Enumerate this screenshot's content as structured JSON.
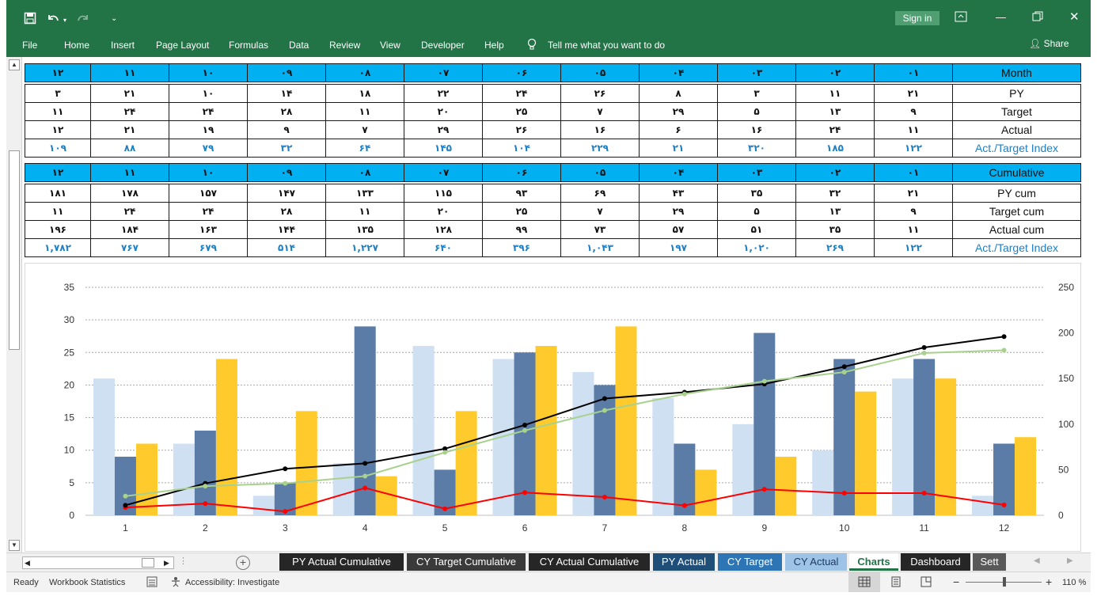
{
  "ribbon": {
    "signin": "Sign in",
    "menu": [
      "File",
      "Home",
      "Insert",
      "Page Layout",
      "Formulas",
      "Data",
      "Review",
      "View",
      "Developer",
      "Help"
    ],
    "tell_me": "Tell me what you want to do",
    "share": "Share"
  },
  "table1": {
    "header": {
      "label": "Month",
      "cells": [
        "۱۲",
        "۱۱",
        "۱۰",
        "۰۹",
        "۰۸",
        "۰۷",
        "۰۶",
        "۰۵",
        "۰۴",
        "۰۳",
        "۰۲",
        "۰۱"
      ]
    },
    "rows": [
      {
        "label": "PY",
        "cells": [
          "۳",
          "۲۱",
          "۱۰",
          "۱۴",
          "۱۸",
          "۲۲",
          "۲۴",
          "۲۶",
          "۸",
          "۳",
          "۱۱",
          "۲۱"
        ]
      },
      {
        "label": "Target",
        "cells": [
          "۱۱",
          "۲۴",
          "۲۴",
          "۲۸",
          "۱۱",
          "۲۰",
          "۲۵",
          "۷",
          "۲۹",
          "۵",
          "۱۳",
          "۹"
        ]
      },
      {
        "label": "Actual",
        "cells": [
          "۱۲",
          "۲۱",
          "۱۹",
          "۹",
          "۷",
          "۲۹",
          "۲۶",
          "۱۶",
          "۶",
          "۱۶",
          "۲۴",
          "۱۱"
        ]
      },
      {
        "label": "Act./Target Index",
        "cells": [
          "۱۰۹",
          "۸۸",
          "۷۹",
          "۳۲",
          "۶۴",
          "۱۴۵",
          "۱۰۴",
          "۲۲۹",
          "۲۱",
          "۳۲۰",
          "۱۸۵",
          "۱۲۲"
        ]
      }
    ]
  },
  "table2": {
    "header": {
      "label": "Cumulative",
      "cells": [
        "۱۲",
        "۱۱",
        "۱۰",
        "۰۹",
        "۰۸",
        "۰۷",
        "۰۶",
        "۰۵",
        "۰۴",
        "۰۳",
        "۰۲",
        "۰۱"
      ]
    },
    "rows": [
      {
        "label": "PY cum",
        "cells": [
          "۱۸۱",
          "۱۷۸",
          "۱۵۷",
          "۱۴۷",
          "۱۳۳",
          "۱۱۵",
          "۹۳",
          "۶۹",
          "۴۳",
          "۳۵",
          "۳۲",
          "۲۱"
        ]
      },
      {
        "label": "Target cum",
        "cells": [
          "۱۱",
          "۲۴",
          "۲۴",
          "۲۸",
          "۱۱",
          "۲۰",
          "۲۵",
          "۷",
          "۲۹",
          "۵",
          "۱۳",
          "۹"
        ]
      },
      {
        "label": "Actual cum",
        "cells": [
          "۱۹۶",
          "۱۸۴",
          "۱۶۳",
          "۱۴۴",
          "۱۳۵",
          "۱۲۸",
          "۹۹",
          "۷۳",
          "۵۷",
          "۵۱",
          "۳۵",
          "۱۱"
        ]
      },
      {
        "label": "Act./Target Index",
        "cells": [
          "۱,۷۸۲",
          "۷۶۷",
          "۶۷۹",
          "۵۱۴",
          "۱,۲۲۷",
          "۶۴۰",
          "۳۹۶",
          "۱,۰۴۳",
          "۱۹۷",
          "۱,۰۲۰",
          "۲۶۹",
          "۱۲۲"
        ]
      }
    ]
  },
  "chart_data": {
    "type": "bar",
    "categories": [
      "1",
      "2",
      "3",
      "4",
      "5",
      "6",
      "7",
      "8",
      "9",
      "10",
      "11",
      "12"
    ],
    "ylim": [
      0,
      35
    ],
    "y_ticks": [
      "0",
      "5",
      "10",
      "15",
      "20",
      "25",
      "30",
      "35"
    ],
    "y2lim": [
      0,
      250
    ],
    "y2_ticks": [
      "0",
      "50",
      "100",
      "150",
      "200",
      "250"
    ],
    "grid": true,
    "series": [
      {
        "kind": "bar",
        "color": "#cfe0f3",
        "values": [
          21,
          11,
          3,
          8,
          26,
          24,
          22,
          18,
          14,
          10,
          21,
          3
        ]
      },
      {
        "kind": "bar",
        "color": "#5a7ca6",
        "values": [
          9,
          13,
          5,
          29,
          7,
          25,
          20,
          11,
          28,
          24,
          24,
          11
        ]
      },
      {
        "kind": "bar",
        "color": "#ffca2c",
        "values": [
          11,
          24,
          16,
          6,
          16,
          26,
          29,
          7,
          9,
          19,
          21,
          12
        ]
      },
      {
        "kind": "line",
        "axis": "left",
        "color": "#ff0000",
        "values": [
          1.2,
          1.8,
          0.6,
          4.2,
          1.0,
          3.5,
          2.8,
          1.5,
          4.0,
          3.4,
          3.4,
          1.6
        ]
      },
      {
        "kind": "line",
        "axis": "right",
        "color": "#000000",
        "values": [
          11,
          35,
          51,
          57,
          73,
          99,
          128,
          135,
          144,
          163,
          184,
          196
        ]
      },
      {
        "kind": "line",
        "axis": "right",
        "color": "#a9d18e",
        "values": [
          21,
          32,
          35,
          43,
          69,
          93,
          115,
          133,
          147,
          157,
          178,
          181
        ]
      }
    ]
  },
  "sheets": [
    {
      "label": "PY Actual Cumulative",
      "bg": "#262626",
      "fg": "#ffffff"
    },
    {
      "label": "CY Target Cumulative",
      "bg": "#3a3a3a",
      "fg": "#ffffff"
    },
    {
      "label": "CY Actual Cumulative",
      "bg": "#262626",
      "fg": "#ffffff"
    },
    {
      "label": "PY Actual",
      "bg": "#1f4e79",
      "fg": "#ffffff"
    },
    {
      "label": "CY Target",
      "bg": "#2e75b6",
      "fg": "#ffffff"
    },
    {
      "label": "CY Actual",
      "bg": "#9dc3e6",
      "fg": "#1f3864"
    },
    {
      "label": "Charts",
      "bg": "#ffffff",
      "fg": "#227346"
    },
    {
      "label": "Dashboard",
      "bg": "#262626",
      "fg": "#ffffff"
    },
    {
      "label": "Sett",
      "bg": "#595959",
      "fg": "#ffffff"
    }
  ],
  "status": {
    "ready": "Ready",
    "workbook_stats": "Workbook Statistics",
    "accessibility": "Accessibility: Investigate",
    "zoom": "110 %"
  }
}
